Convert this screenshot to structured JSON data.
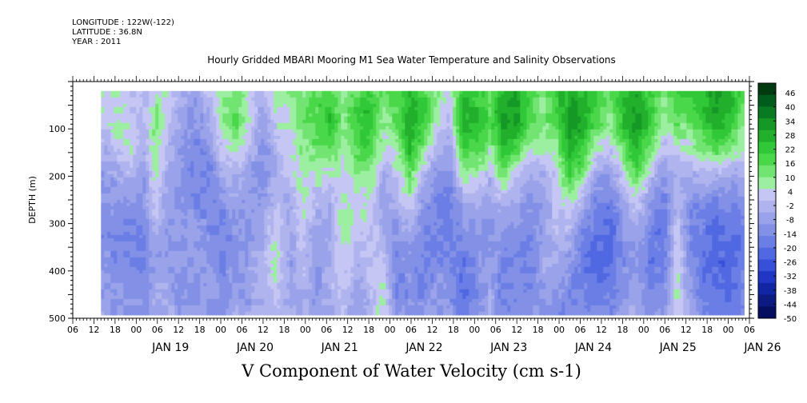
{
  "meta_lines": [
    "LONGITUDE : 122W(-122)",
    "LATITUDE : 36.8N",
    "YEAR : 2011"
  ],
  "title": "Hourly Gridded MBARI Mooring M1 Sea Water Temperature and Salinity Observations",
  "bottom_title": "V Component of Water Velocity (cm s-1)",
  "chart_data": {
    "type": "heatmap",
    "ylabel": "DEPTH (m)",
    "ylim": [
      500,
      0
    ],
    "y_ticks": [
      100,
      200,
      300,
      400,
      500
    ],
    "y_data_range": [
      20,
      490
    ],
    "x_range_hours": [
      "JAN 18 06",
      "JAN 26 06"
    ],
    "x_data_start": "JAN 18 14",
    "x_data_end": "JAN 26 04",
    "x_hour_labels": [
      "06",
      "12",
      "18",
      "00",
      "06",
      "12",
      "18",
      "00",
      "06",
      "12",
      "18",
      "00",
      "06",
      "12",
      "18",
      "00",
      "06",
      "12",
      "18",
      "00",
      "06",
      "12",
      "18",
      "00",
      "06",
      "12",
      "18",
      "00",
      "06",
      "12",
      "18",
      "00",
      "06"
    ],
    "x_day_labels": [
      "JAN 19",
      "JAN 20",
      "JAN 21",
      "JAN 22",
      "JAN 23",
      "JAN 24",
      "JAN 25",
      "JAN 26"
    ],
    "colorbar": {
      "labels": [
        "46",
        "40",
        "34",
        "28",
        "22",
        "16",
        "10",
        "4",
        "-2",
        "-8",
        "-14",
        "-20",
        "-26",
        "-32",
        "-38",
        "-44",
        "-50"
      ],
      "colors": [
        "#003a10",
        "#005c1c",
        "#0a7a22",
        "#169826",
        "#22b02c",
        "#30c838",
        "#4ad84a",
        "#72e472",
        "#9cefa0",
        "#c6c6f4",
        "#b0b4ee",
        "#9aa2ea",
        "#8290e6",
        "#6a7ee6",
        "#5068e2",
        "#3650d8",
        "#2036c4",
        "#1226a4",
        "#0c1a82",
        "#060e60"
      ],
      "range": [
        -50,
        52
      ]
    },
    "depth_profile_nodes": [
      20,
      80,
      140,
      200,
      260,
      320,
      380,
      440,
      490
    ],
    "hourly_columns_note": "V velocity per time column (cm/s) by depth node, every 4h",
    "columns": [
      [
        4,
        3,
        -4,
        -8,
        -10,
        -12,
        -10,
        -8,
        -6
      ],
      [
        6,
        8,
        2,
        -6,
        -12,
        -14,
        -12,
        -10,
        -8
      ],
      [
        2,
        4,
        8,
        -2,
        -10,
        -16,
        -14,
        -12,
        -10
      ],
      [
        0,
        -2,
        -6,
        -8,
        -12,
        -14,
        -16,
        -12,
        -10
      ],
      [
        8,
        14,
        10,
        6,
        2,
        -4,
        -8,
        -6,
        -4
      ],
      [
        4,
        2,
        -2,
        -6,
        -8,
        -10,
        -8,
        -6,
        -4
      ],
      [
        -4,
        -8,
        -10,
        -12,
        -10,
        -8,
        -10,
        -12,
        -10
      ],
      [
        -6,
        -10,
        -14,
        -14,
        -12,
        -8,
        -6,
        -8,
        -8
      ],
      [
        2,
        -4,
        -12,
        -14,
        -14,
        -12,
        -10,
        -8,
        -8
      ],
      [
        8,
        10,
        4,
        -4,
        -12,
        -14,
        -14,
        -12,
        -10
      ],
      [
        14,
        18,
        8,
        -2,
        -8,
        -10,
        -10,
        -8,
        -6
      ],
      [
        4,
        6,
        -2,
        -8,
        -10,
        -8,
        -6,
        -8,
        -6
      ],
      [
        -2,
        -6,
        -10,
        -12,
        -8,
        -4,
        -2,
        -4,
        -6
      ],
      [
        6,
        4,
        -2,
        -4,
        2,
        6,
        8,
        4,
        0
      ],
      [
        10,
        8,
        4,
        2,
        -4,
        -6,
        -8,
        -6,
        -4
      ],
      [
        12,
        14,
        10,
        8,
        6,
        4,
        0,
        -2,
        -4
      ],
      [
        16,
        20,
        14,
        6,
        -2,
        -6,
        -8,
        -10,
        -8
      ],
      [
        20,
        26,
        16,
        4,
        -4,
        -6,
        -4,
        -2,
        -4
      ],
      [
        8,
        12,
        6,
        4,
        8,
        10,
        6,
        2,
        0
      ],
      [
        18,
        22,
        18,
        8,
        4,
        2,
        -2,
        -6,
        -8
      ],
      [
        22,
        28,
        20,
        10,
        6,
        4,
        2,
        0,
        -2
      ],
      [
        12,
        10,
        4,
        -4,
        -8,
        -4,
        2,
        8,
        10
      ],
      [
        18,
        16,
        8,
        2,
        -4,
        -10,
        -14,
        -16,
        -12
      ],
      [
        24,
        30,
        26,
        14,
        4,
        -6,
        -10,
        -12,
        -10
      ],
      [
        20,
        24,
        12,
        -2,
        -10,
        -14,
        -16,
        -14,
        -10
      ],
      [
        10,
        8,
        -2,
        -10,
        -14,
        -16,
        -12,
        -10,
        -8
      ],
      [
        4,
        2,
        -6,
        -12,
        -16,
        -18,
        -14,
        -12,
        -10
      ],
      [
        26,
        30,
        20,
        6,
        -6,
        -12,
        -18,
        -20,
        -16
      ],
      [
        22,
        26,
        20,
        8,
        -4,
        -10,
        -12,
        -14,
        -12
      ],
      [
        16,
        18,
        8,
        -2,
        -8,
        -10,
        -6,
        -4,
        -2
      ],
      [
        28,
        34,
        28,
        12,
        -2,
        -10,
        -14,
        -16,
        -14
      ],
      [
        30,
        32,
        18,
        2,
        -8,
        -12,
        -14,
        -12,
        -10
      ],
      [
        18,
        20,
        8,
        -4,
        -10,
        -14,
        -16,
        -14,
        -10
      ],
      [
        10,
        12,
        6,
        -4,
        -8,
        -6,
        -4,
        -8,
        -10
      ],
      [
        24,
        20,
        10,
        4,
        2,
        0,
        -4,
        -10,
        -12
      ],
      [
        30,
        34,
        30,
        20,
        6,
        -4,
        -10,
        -14,
        -14
      ],
      [
        28,
        30,
        22,
        8,
        -6,
        -14,
        -18,
        -16,
        -12
      ],
      [
        20,
        18,
        6,
        -8,
        -16,
        -20,
        -20,
        -18,
        -14
      ],
      [
        14,
        12,
        2,
        -10,
        -18,
        -22,
        -20,
        -16,
        -12
      ],
      [
        26,
        26,
        16,
        4,
        -6,
        -10,
        -12,
        -10,
        -6
      ],
      [
        30,
        34,
        28,
        14,
        2,
        -6,
        -8,
        -6,
        -4
      ],
      [
        20,
        24,
        14,
        0,
        -10,
        -16,
        -18,
        -14,
        -10
      ],
      [
        12,
        10,
        0,
        -10,
        -16,
        -18,
        -16,
        -12,
        -8
      ],
      [
        22,
        16,
        4,
        -2,
        0,
        4,
        6,
        8,
        6
      ],
      [
        20,
        14,
        6,
        -4,
        -12,
        -14,
        -12,
        -10,
        -6
      ],
      [
        26,
        24,
        14,
        -2,
        -14,
        -18,
        -20,
        -18,
        -14
      ],
      [
        34,
        30,
        18,
        -4,
        -16,
        -20,
        -22,
        -20,
        -16
      ],
      [
        28,
        24,
        12,
        -6,
        -16,
        -20,
        -22,
        -22,
        -18
      ],
      [
        16,
        12,
        4,
        -6,
        -14,
        -16,
        -16,
        -14,
        -12
      ]
    ]
  }
}
